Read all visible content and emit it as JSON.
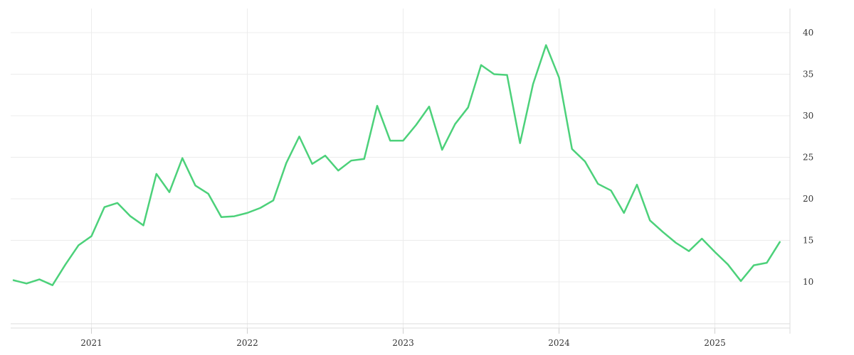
{
  "chart_data": {
    "type": "line",
    "title": "",
    "xlabel": "",
    "ylabel": "",
    "x_tick_labels": [
      "2021",
      "2022",
      "2023",
      "2024",
      "2025"
    ],
    "y_ticks": [
      10,
      15,
      20,
      25,
      30,
      35,
      40
    ],
    "ylim": [
      5,
      42.5
    ],
    "xlim": [
      "2020-07",
      "2025-07"
    ],
    "grid": true,
    "y_axis_position": "right",
    "color": "#4cd17a",
    "x": [
      "2020-07",
      "2020-08",
      "2020-09",
      "2020-10",
      "2020-11",
      "2020-12",
      "2021-01",
      "2021-02",
      "2021-03",
      "2021-04",
      "2021-05",
      "2021-06",
      "2021-07",
      "2021-08",
      "2021-09",
      "2021-10",
      "2021-11",
      "2021-12",
      "2022-01",
      "2022-02",
      "2022-03",
      "2022-04",
      "2022-05",
      "2022-06",
      "2022-07",
      "2022-08",
      "2022-09",
      "2022-10",
      "2022-11",
      "2022-12",
      "2023-01",
      "2023-02",
      "2023-03",
      "2023-04",
      "2023-05",
      "2023-06",
      "2023-07",
      "2023-08",
      "2023-09",
      "2023-10",
      "2023-11",
      "2023-12",
      "2024-01",
      "2024-02",
      "2024-03",
      "2024-04",
      "2024-05",
      "2024-06",
      "2024-07",
      "2024-08",
      "2024-09",
      "2024-10",
      "2024-11",
      "2024-12",
      "2025-01",
      "2025-02",
      "2025-03",
      "2025-04",
      "2025-05",
      "2025-06"
    ],
    "series": [
      {
        "values": [
          10.2,
          9.8,
          10.3,
          9.6,
          12.1,
          14.4,
          15.5,
          19.0,
          19.5,
          17.9,
          16.8,
          23.0,
          20.8,
          24.9,
          21.6,
          20.6,
          17.8,
          17.9,
          18.3,
          18.9,
          19.8,
          24.3,
          27.5,
          24.2,
          25.2,
          23.4,
          24.6,
          24.8,
          31.2,
          27.0,
          27.0,
          28.9,
          31.1,
          25.9,
          29.0,
          31.0,
          36.1,
          35.0,
          34.9,
          26.7,
          33.8,
          38.5,
          34.6,
          26.0,
          24.5,
          21.8,
          21.0,
          18.3,
          21.7,
          17.4,
          16.0,
          14.7,
          13.7,
          15.2,
          13.6,
          12.1,
          10.1,
          12.0,
          12.3,
          14.8
        ]
      }
    ]
  }
}
